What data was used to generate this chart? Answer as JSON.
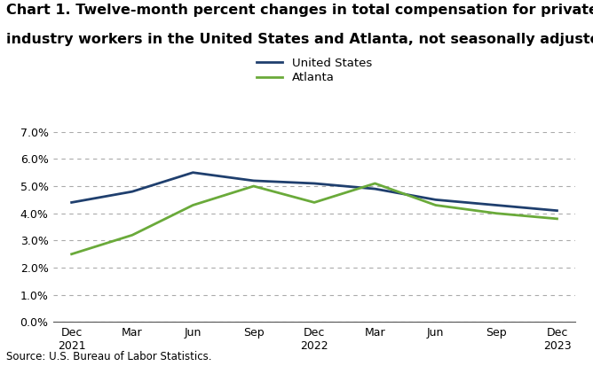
{
  "title_line1": "Chart 1. Twelve-month percent changes in total compensation for private",
  "title_line2": "industry workers in the United States and Atlanta, not seasonally adjusted",
  "source": "Source: U.S. Bureau of Labor Statistics.",
  "x_labels": [
    "Dec\n2021",
    "Mar",
    "Jun",
    "Sep",
    "Dec\n2022",
    "Mar",
    "Jun",
    "Sep",
    "Dec\n2023"
  ],
  "us_values": [
    4.4,
    4.8,
    5.5,
    5.2,
    5.1,
    4.9,
    4.5,
    4.3,
    4.1
  ],
  "atl_values": [
    2.5,
    3.2,
    4.3,
    5.0,
    4.4,
    5.1,
    4.3,
    4.0,
    3.8
  ],
  "us_color": "#1f3f6e",
  "atl_color": "#6aaa3a",
  "ylim": [
    0.0,
    7.0
  ],
  "yticks": [
    0.0,
    1.0,
    2.0,
    3.0,
    4.0,
    5.0,
    6.0,
    7.0
  ],
  "legend_labels": [
    "United States",
    "Atlanta"
  ],
  "line_width": 2.0,
  "grid_color": "#aaaaaa",
  "title_fontsize": 11.5,
  "label_fontsize": 9.5,
  "tick_fontsize": 9,
  "source_fontsize": 8.5
}
